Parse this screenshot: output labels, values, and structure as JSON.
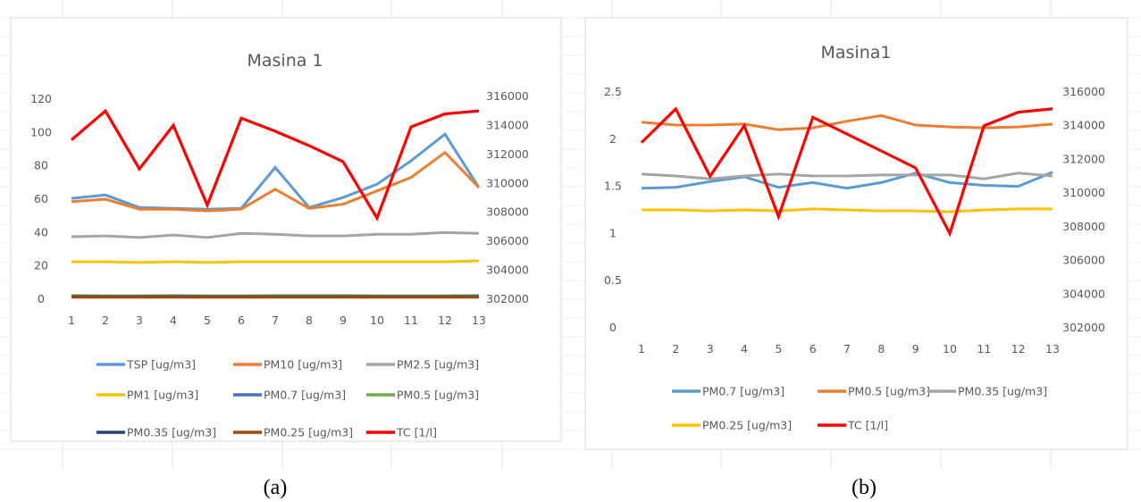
{
  "chart_data": [
    {
      "type": "line",
      "title": "Masina 1",
      "caption": "(a)",
      "categories": [
        "1",
        "2",
        "3",
        "4",
        "5",
        "6",
        "7",
        "8",
        "9",
        "10",
        "11",
        "12",
        "13"
      ],
      "y_left": {
        "range": [
          0,
          120
        ],
        "ticks": [
          "0",
          "20",
          "40",
          "60",
          "80",
          "100",
          "120"
        ]
      },
      "y_right": {
        "range": [
          302000,
          316000
        ],
        "ticks": [
          "302000",
          "304000",
          "306000",
          "308000",
          "310000",
          "312000",
          "314000",
          "316000"
        ]
      },
      "gridlines": false,
      "legend_position": "bottom",
      "series": [
        {
          "name": "TSP [ug/m3]",
          "axis": "left",
          "color": "#5B9BD5",
          "values": [
            60.5,
            62.5,
            55,
            54.5,
            54,
            54.5,
            79,
            55,
            61,
            69,
            83,
            99,
            67
          ]
        },
        {
          "name": "PM10 [ug/m3]",
          "axis": "left",
          "color": "#ED7D31",
          "values": [
            58.5,
            60,
            54,
            54,
            53,
            54,
            66,
            54.5,
            57,
            65,
            73,
            88,
            67
          ]
        },
        {
          "name": "PM2.5 [ug/m3]",
          "axis": "left",
          "color": "#A5A5A5",
          "values": [
            37.5,
            38,
            37,
            38.5,
            37,
            39.5,
            39,
            38,
            38,
            39,
            39,
            40,
            39.5
          ]
        },
        {
          "name": "PM1 [ug/m3]",
          "axis": "left",
          "color": "#FFC000",
          "values": [
            22.5,
            22.5,
            22,
            22.5,
            22,
            22.5,
            22.5,
            22.5,
            22.5,
            22.5,
            22.5,
            22.5,
            23
          ]
        },
        {
          "name": "PM0.7 [ug/m3]",
          "axis": "left",
          "color": "#4472C4",
          "values": [
            1.5,
            1.5,
            1.5,
            1.6,
            1.5,
            1.5,
            1.5,
            1.5,
            1.6,
            1.5,
            1.5,
            1.5,
            1.6
          ]
        },
        {
          "name": "PM0.5 [ug/m3]",
          "axis": "left",
          "color": "#70AD47",
          "values": [
            2.2,
            2.1,
            2.1,
            2.2,
            2.1,
            2.1,
            2.2,
            2.2,
            2.2,
            2.1,
            2.1,
            2.1,
            2.2
          ]
        },
        {
          "name": "PM0.35 [ug/m3]",
          "axis": "left",
          "color": "#264478",
          "values": [
            1.6,
            1.6,
            1.6,
            1.6,
            1.6,
            1.6,
            1.6,
            1.6,
            1.6,
            1.6,
            1.6,
            1.6,
            1.6
          ]
        },
        {
          "name": "PM0.25 [ug/m3]",
          "axis": "left",
          "color": "#9E480E",
          "values": [
            1.2,
            1.2,
            1.2,
            1.2,
            1.2,
            1.2,
            1.2,
            1.2,
            1.2,
            1.2,
            1.2,
            1.2,
            1.2
          ]
        },
        {
          "name": "TC [1/l]",
          "axis": "right",
          "color": "#FF0000",
          "values": [
            313000,
            315000,
            311000,
            314000,
            308500,
            314500,
            313600,
            312600,
            311500,
            307600,
            313900,
            314800,
            315000
          ]
        }
      ]
    },
    {
      "type": "line",
      "title": "Masina1",
      "caption": "(b)",
      "categories": [
        "1",
        "2",
        "3",
        "4",
        "5",
        "6",
        "7",
        "8",
        "9",
        "10",
        "11",
        "12",
        "13"
      ],
      "y_left": {
        "range": [
          0,
          2.5
        ],
        "ticks": [
          "0",
          "0.5",
          "1",
          "1.5",
          "2",
          "2.5"
        ]
      },
      "y_right": {
        "range": [
          302000,
          316000
        ],
        "ticks": [
          "302000",
          "304000",
          "306000",
          "308000",
          "310000",
          "312000",
          "314000",
          "316000"
        ]
      },
      "gridlines": false,
      "legend_position": "bottom",
      "series": [
        {
          "name": "PM0.7 [ug/m3]",
          "axis": "left",
          "color": "#5B9BD5",
          "values": [
            1.48,
            1.49,
            1.55,
            1.6,
            1.49,
            1.54,
            1.48,
            1.54,
            1.64,
            1.54,
            1.51,
            1.5,
            1.65
          ]
        },
        {
          "name": "PM0.5 [ug/m3]",
          "axis": "left",
          "color": "#ED7D31",
          "values": [
            2.18,
            2.15,
            2.15,
            2.16,
            2.1,
            2.12,
            2.19,
            2.25,
            2.15,
            2.13,
            2.12,
            2.13,
            2.16
          ]
        },
        {
          "name": "PM0.35 [ug/m3]",
          "axis": "left",
          "color": "#A5A5A5",
          "values": [
            1.63,
            1.61,
            1.58,
            1.61,
            1.63,
            1.61,
            1.61,
            1.62,
            1.62,
            1.62,
            1.58,
            1.64,
            1.61
          ]
        },
        {
          "name": "PM0.25 [ug/m3]",
          "axis": "left",
          "color": "#FFC000",
          "values": [
            1.25,
            1.25,
            1.24,
            1.25,
            1.24,
            1.26,
            1.25,
            1.24,
            1.24,
            1.23,
            1.25,
            1.26,
            1.26
          ]
        },
        {
          "name": "TC [1/l]",
          "axis": "right",
          "color": "#FF0000",
          "values": [
            313000,
            315000,
            311000,
            314000,
            308600,
            314500,
            313500,
            312500,
            311500,
            307600,
            314000,
            314800,
            315000
          ]
        }
      ]
    }
  ]
}
